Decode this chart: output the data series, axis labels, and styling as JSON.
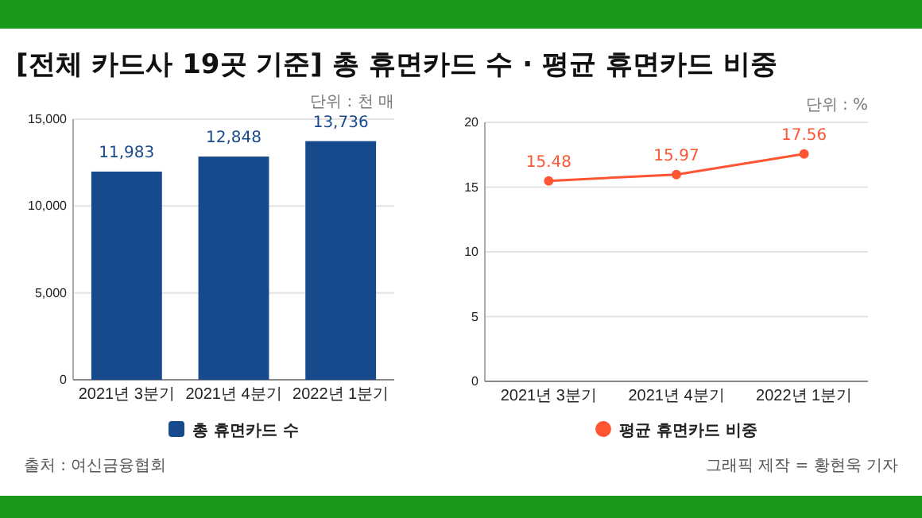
{
  "chart_data": [
    {
      "type": "bar",
      "title": "[전체 카드사 19곳 기준] 총 휴면카드 수 · 평균 휴면카드 비중",
      "categories": [
        "2021년 3분기",
        "2021년 4분기",
        "2022년 1분기"
      ],
      "series": [
        {
          "name": "총 휴면카드 수",
          "color": "#174a8c",
          "values": [
            11983,
            12848,
            13736
          ],
          "value_labels": [
            "11,983",
            "12,848",
            "13,736"
          ]
        }
      ],
      "ylim": [
        0,
        15000
      ],
      "yticks": [
        0,
        {
          "value": 5000,
          "label": "5,000"
        },
        {
          "value": 10000,
          "label": "10,000"
        },
        {
          "value": 15000,
          "label": "15,000"
        }
      ],
      "grid": "y",
      "legend": "bottom",
      "annotations": [
        "단위 : 천 매",
        "출처 : 여신금융협회"
      ]
    },
    {
      "type": "line",
      "categories": [
        "2021년 3분기",
        "2021년 4분기",
        "2022년 1분기"
      ],
      "series": [
        {
          "name": "평균 휴면카드 비중",
          "color": "#ff5533",
          "values": [
            15.48,
            15.97,
            17.56
          ]
        }
      ],
      "ylim": [
        0,
        20
      ],
      "yticks": [
        0,
        5,
        10,
        15,
        20
      ],
      "grid": "y",
      "legend": "bottom",
      "marker": "circle",
      "line_style": "solid",
      "data_labels": true,
      "annotations": [
        "단위 : %",
        "그래픽 제작 = 황현욱 기자"
      ]
    }
  ]
}
